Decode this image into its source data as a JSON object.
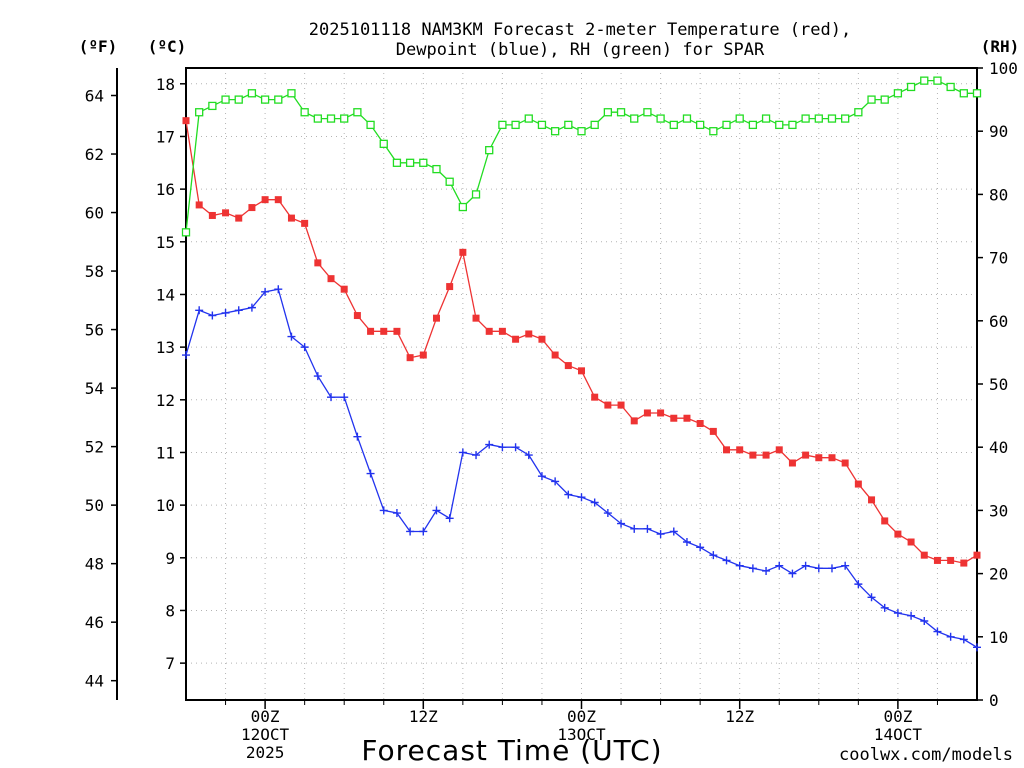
{
  "colors": {
    "temperature": "#ee3333",
    "dewpoint": "#2233ee",
    "rh": "#22dd22",
    "credit": "#e8343a",
    "grid": "#b4b4b4"
  },
  "chart_data": {
    "type": "line",
    "title": "2025101118 NAM3KM Forecast 2-meter Temperature (red), Dewpoint (blue), RH (green) for SPAR",
    "title_lines": [
      "2025101118 NAM3KM Forecast 2-meter Temperature (red),",
      "Dewpoint (blue), RH (green) for SPAR"
    ],
    "xlabel": "Forecast Time (UTC)",
    "credit": "coolwx.com/models",
    "units": {
      "fahrenheit": "(ºF)",
      "celsius": "(ºC)",
      "rh": "(RH)"
    },
    "x_unit": "forecast hour",
    "xlim": [
      0,
      60
    ],
    "x_ticks": [
      {
        "x": 6,
        "lines": [
          "00Z",
          "12OCT",
          "2025"
        ]
      },
      {
        "x": 18,
        "lines": [
          "12Z"
        ]
      },
      {
        "x": 30,
        "lines": [
          "00Z",
          "13OCT"
        ]
      },
      {
        "x": 42,
        "lines": [
          "12Z"
        ]
      },
      {
        "x": 54,
        "lines": [
          "00Z",
          "14OCT"
        ]
      }
    ],
    "y_celsius": {
      "lim": [
        6.3,
        18.3
      ],
      "ticks": [
        7,
        8,
        9,
        10,
        11,
        12,
        13,
        14,
        15,
        16,
        17,
        18
      ]
    },
    "y_fahrenheit": {
      "ticks": [
        44,
        46,
        48,
        50,
        52,
        54,
        56,
        58,
        60,
        62,
        64
      ]
    },
    "y_rh": {
      "lim": [
        0,
        100
      ],
      "ticks": [
        0,
        10,
        20,
        30,
        40,
        50,
        60,
        70,
        80,
        90,
        100
      ]
    },
    "grid": true,
    "x": [
      0,
      1,
      2,
      3,
      4,
      5,
      6,
      7,
      8,
      9,
      10,
      11,
      12,
      13,
      14,
      15,
      16,
      17,
      18,
      19,
      20,
      21,
      22,
      23,
      24,
      25,
      26,
      27,
      28,
      29,
      30,
      31,
      32,
      33,
      34,
      35,
      36,
      37,
      38,
      39,
      40,
      41,
      42,
      43,
      44,
      45,
      46,
      47,
      48,
      49,
      50,
      51,
      52,
      53,
      54,
      55,
      56,
      57,
      58,
      59,
      60
    ],
    "series": [
      {
        "name": "2-meter Temperature",
        "axis": "celsius",
        "marker": "filled-square",
        "values": [
          17.3,
          15.7,
          15.5,
          15.55,
          15.45,
          15.65,
          15.8,
          15.8,
          15.45,
          15.35,
          14.6,
          14.3,
          14.1,
          13.6,
          13.3,
          13.3,
          13.3,
          12.8,
          12.85,
          13.55,
          14.15,
          14.8,
          13.55,
          13.3,
          13.3,
          13.15,
          13.25,
          13.15,
          12.85,
          12.65,
          12.55,
          12.05,
          11.9,
          11.9,
          11.6,
          11.75,
          11.75,
          11.65,
          11.65,
          11.55,
          11.4,
          11.05,
          11.05,
          10.95,
          10.95,
          11.05,
          10.8,
          10.95,
          10.9,
          10.9,
          10.8,
          10.4,
          10.1,
          9.7,
          9.45,
          9.3,
          9.05,
          8.95,
          8.95,
          8.9,
          9.05
        ]
      },
      {
        "name": "Dewpoint",
        "axis": "celsius",
        "marker": "plus",
        "values": [
          12.85,
          13.7,
          13.6,
          13.65,
          13.7,
          13.75,
          14.05,
          14.1,
          13.2,
          13.0,
          12.45,
          12.05,
          12.05,
          11.3,
          10.6,
          9.9,
          9.85,
          9.5,
          9.5,
          9.9,
          9.75,
          11.0,
          10.95,
          11.15,
          11.1,
          11.1,
          10.95,
          10.55,
          10.45,
          10.2,
          10.15,
          10.05,
          9.85,
          9.65,
          9.55,
          9.55,
          9.45,
          9.5,
          9.3,
          9.2,
          9.05,
          8.95,
          8.85,
          8.8,
          8.75,
          8.85,
          8.7,
          8.85,
          8.8,
          8.8,
          8.85,
          8.5,
          8.25,
          8.05,
          7.95,
          7.9,
          7.8,
          7.6,
          7.5,
          7.45,
          7.3
        ]
      },
      {
        "name": "RH",
        "axis": "rh",
        "marker": "open-square",
        "values": [
          74,
          93,
          94,
          95,
          95,
          96,
          95,
          95,
          96,
          93,
          92,
          92,
          92,
          93,
          91,
          88,
          85,
          85,
          85,
          84,
          82,
          78,
          80,
          87,
          91,
          91,
          92,
          91,
          90,
          91,
          90,
          91,
          93,
          93,
          92,
          93,
          92,
          91,
          92,
          91,
          90,
          91,
          92,
          91,
          92,
          91,
          91,
          92,
          92,
          92,
          92,
          93,
          95,
          95,
          96,
          97,
          98,
          98,
          97,
          96,
          96
        ]
      }
    ]
  }
}
